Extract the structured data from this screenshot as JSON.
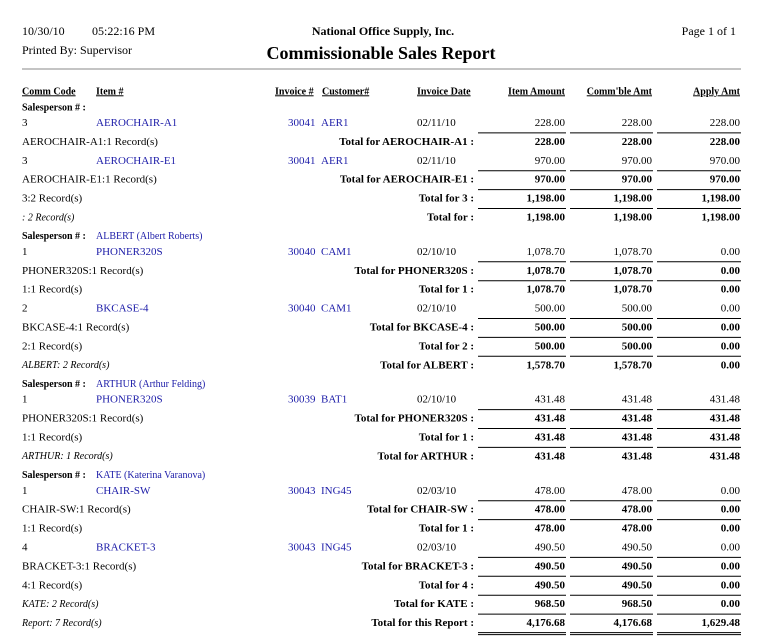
{
  "header": {
    "date": "10/30/10",
    "time": "05:22:16 PM",
    "company": "National Office Supply, Inc.",
    "page": "Page 1 of 1",
    "printed_by": "Printed By: Supervisor",
    "title": "Commissionable Sales Report"
  },
  "columns": {
    "comm_code": "Comm Code",
    "item": "Item #",
    "invoice": "Invoice #",
    "customer": "Customer#",
    "date": "Invoice Date",
    "item_amount": "Item Amount",
    "commble_amt": "Comm'ble Amt",
    "apply_amt": "Apply Amt"
  },
  "rows": [
    {
      "heading": "Salesperson # :"
    },
    {
      "comm_code": "3",
      "item": "AEROCHAIR-A1",
      "invoice": "30041",
      "customer": "AER1",
      "date": "02/11/10",
      "item_amount": "228.00",
      "commble_amt": "228.00",
      "apply_amt": "228.00"
    },
    {
      "count": "AEROCHAIR-A1:1 Record(s)",
      "label": "Total for AEROCHAIR-A1 :",
      "item_amount": "228.00",
      "commble_amt": "228.00",
      "apply_amt": "228.00"
    },
    {
      "comm_code": "3",
      "item": "AEROCHAIR-E1",
      "invoice": "30041",
      "customer": "AER1",
      "date": "02/11/10",
      "item_amount": "970.00",
      "commble_amt": "970.00",
      "apply_amt": "970.00"
    },
    {
      "count": "AEROCHAIR-E1:1 Record(s)",
      "label": "Total for AEROCHAIR-E1 :",
      "item_amount": "970.00",
      "commble_amt": "970.00",
      "apply_amt": "970.00"
    },
    {
      "count": "3:2 Record(s)",
      "label": "Total for 3 :",
      "item_amount": "1,198.00",
      "commble_amt": "1,198.00",
      "apply_amt": "1,198.00"
    },
    {
      "salesperson_count": ": 2 Record(s)",
      "label": "Total for :",
      "item_amount": "1,198.00",
      "commble_amt": "1,198.00",
      "apply_amt": "1,198.00"
    },
    {
      "heading": "Salesperson # :",
      "name": "ALBERT (Albert Roberts)"
    },
    {
      "comm_code": "1",
      "item": "PHONER320S",
      "invoice": "30040",
      "customer": "CAM1",
      "date": "02/10/10",
      "item_amount": "1,078.70",
      "commble_amt": "1,078.70",
      "apply_amt": "0.00"
    },
    {
      "count": "PHONER320S:1 Record(s)",
      "label": "Total for PHONER320S :",
      "item_amount": "1,078.70",
      "commble_amt": "1,078.70",
      "apply_amt": "0.00"
    },
    {
      "count": "1:1 Record(s)",
      "label": "Total for 1 :",
      "item_amount": "1,078.70",
      "commble_amt": "1,078.70",
      "apply_amt": "0.00"
    },
    {
      "comm_code": "2",
      "item": "BKCASE-4",
      "invoice": "30040",
      "customer": "CAM1",
      "date": "02/10/10",
      "item_amount": "500.00",
      "commble_amt": "500.00",
      "apply_amt": "0.00"
    },
    {
      "count": "BKCASE-4:1 Record(s)",
      "label": "Total for BKCASE-4 :",
      "item_amount": "500.00",
      "commble_amt": "500.00",
      "apply_amt": "0.00"
    },
    {
      "count": "2:1 Record(s)",
      "label": "Total for 2 :",
      "item_amount": "500.00",
      "commble_amt": "500.00",
      "apply_amt": "0.00"
    },
    {
      "salesperson_count": "ALBERT: 2 Record(s)",
      "label": "Total for ALBERT :",
      "item_amount": "1,578.70",
      "commble_amt": "1,578.70",
      "apply_amt": "0.00"
    },
    {
      "heading": "Salesperson # :",
      "name": "ARTHUR (Arthur Felding)"
    },
    {
      "comm_code": "1",
      "item": "PHONER320S",
      "invoice": "30039",
      "customer": "BAT1",
      "date": "02/10/10",
      "item_amount": "431.48",
      "commble_amt": "431.48",
      "apply_amt": "431.48"
    },
    {
      "count": "PHONER320S:1 Record(s)",
      "label": "Total for PHONER320S :",
      "item_amount": "431.48",
      "commble_amt": "431.48",
      "apply_amt": "431.48"
    },
    {
      "count": "1:1 Record(s)",
      "label": "Total for 1 :",
      "item_amount": "431.48",
      "commble_amt": "431.48",
      "apply_amt": "431.48"
    },
    {
      "salesperson_count": "ARTHUR: 1 Record(s)",
      "label": "Total for ARTHUR :",
      "item_amount": "431.48",
      "commble_amt": "431.48",
      "apply_amt": "431.48"
    },
    {
      "heading": "Salesperson # :",
      "name": "KATE (Katerina Varanova)"
    },
    {
      "comm_code": "1",
      "item": "CHAIR-SW",
      "invoice": "30043",
      "customer": "ING45",
      "date": "02/03/10",
      "item_amount": "478.00",
      "commble_amt": "478.00",
      "apply_amt": "0.00"
    },
    {
      "count": "CHAIR-SW:1 Record(s)",
      "label": "Total for CHAIR-SW :",
      "item_amount": "478.00",
      "commble_amt": "478.00",
      "apply_amt": "0.00"
    },
    {
      "count": "1:1 Record(s)",
      "label": "Total for 1 :",
      "item_amount": "478.00",
      "commble_amt": "478.00",
      "apply_amt": "0.00"
    },
    {
      "comm_code": "4",
      "item": "BRACKET-3",
      "invoice": "30043",
      "customer": "ING45",
      "date": "02/03/10",
      "item_amount": "490.50",
      "commble_amt": "490.50",
      "apply_amt": "0.00"
    },
    {
      "count": "BRACKET-3:1 Record(s)",
      "label": "Total for BRACKET-3 :",
      "item_amount": "490.50",
      "commble_amt": "490.50",
      "apply_amt": "0.00"
    },
    {
      "count": "4:1 Record(s)",
      "label": "Total for 4 :",
      "item_amount": "490.50",
      "commble_amt": "490.50",
      "apply_amt": "0.00"
    },
    {
      "salesperson_count": "KATE: 2 Record(s)",
      "label": "Total for KATE :",
      "item_amount": "968.50",
      "commble_amt": "968.50",
      "apply_amt": "0.00"
    },
    {
      "salesperson_count": "Report: 7 Record(s)",
      "label": "Total for this Report :",
      "item_amount": "4,176.68",
      "commble_amt": "4,176.68",
      "apply_amt": "1,629.48"
    }
  ]
}
